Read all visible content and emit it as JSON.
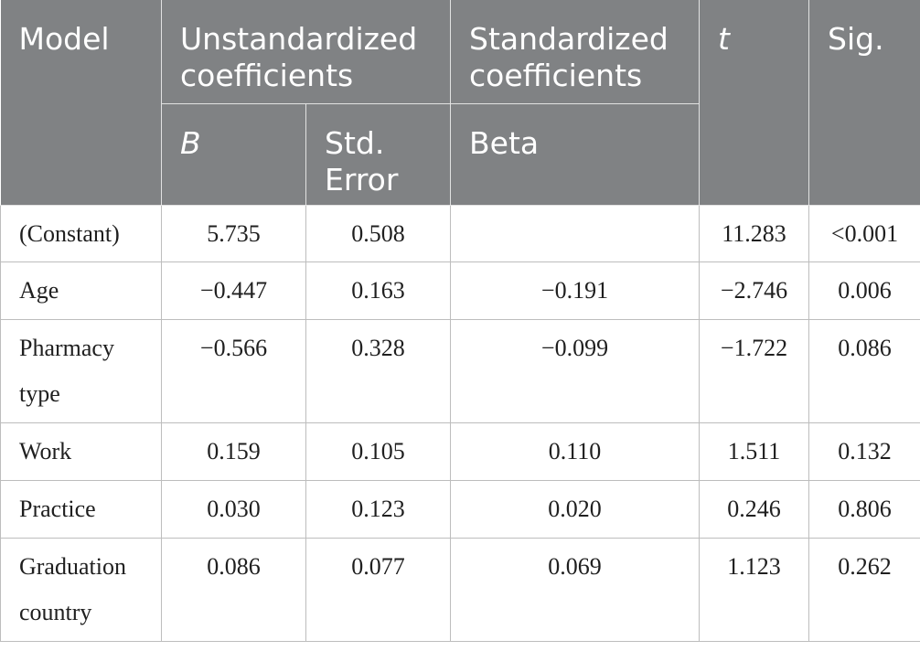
{
  "header": {
    "model": "Model",
    "unstandardized": "Unstandardized coefficients",
    "standardized": "Standardized coefficients",
    "t": "t",
    "sig": "Sig.",
    "b": "B",
    "std_error": "Std. Error",
    "beta": "Beta"
  },
  "rows": [
    {
      "label": "(Constant)",
      "b": "5.735",
      "se": "0.508",
      "beta": "",
      "t": "11.283",
      "sig": "<0.001"
    },
    {
      "label": "Age",
      "b": "−0.447",
      "se": "0.163",
      "beta": "−0.191",
      "t": "−2.746",
      "sig": "0.006"
    },
    {
      "label": "Pharmacy type",
      "b": "−0.566",
      "se": "0.328",
      "beta": "−0.099",
      "t": "−1.722",
      "sig": "0.086"
    },
    {
      "label": "Work",
      "b": "0.159",
      "se": "0.105",
      "beta": "0.110",
      "t": "1.511",
      "sig": "0.132"
    },
    {
      "label": "Practice",
      "b": "0.030",
      "se": "0.123",
      "beta": "0.020",
      "t": "0.246",
      "sig": "0.806"
    },
    {
      "label": "Graduation country",
      "b": "0.086",
      "se": "0.077",
      "beta": "0.069",
      "t": "1.123",
      "sig": "0.262"
    }
  ]
}
